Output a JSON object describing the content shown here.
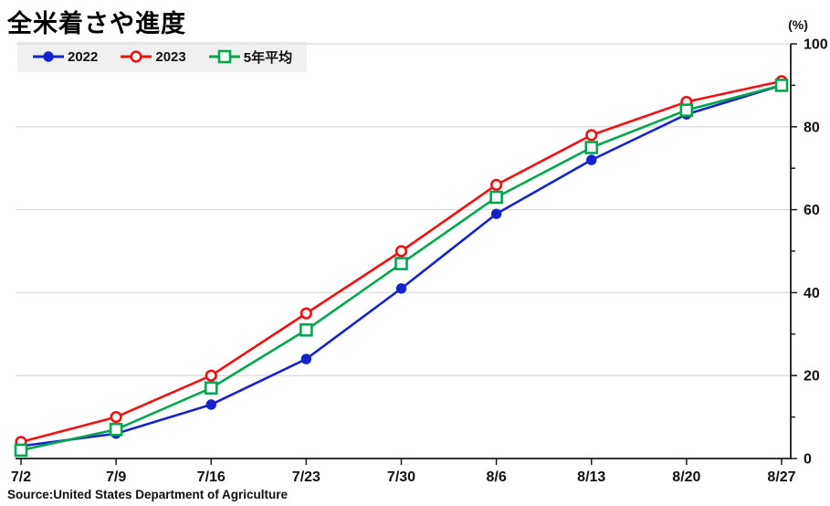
{
  "title": "全米着さや進度",
  "y_unit": "(%)",
  "source": "Source:United States Department of Agriculture",
  "colors": {
    "series_2022": "#1722cc",
    "series_2023": "#ee1111",
    "series_avg5": "#00a54f",
    "grid": "#dcdcdc",
    "axis": "#1a1a1a",
    "text": "#111111",
    "legend_bg": "#f0f0f0",
    "marker_fill_open": "#ffffff"
  },
  "chart_data": {
    "type": "line",
    "categories": [
      "7/2",
      "7/9",
      "7/16",
      "7/23",
      "7/30",
      "8/6",
      "8/13",
      "8/20",
      "8/27"
    ],
    "series": [
      {
        "name": "2022",
        "color_key": "series_2022",
        "marker": "filled-circle",
        "values": [
          3,
          6,
          13,
          24,
          41,
          59,
          72,
          83,
          90
        ]
      },
      {
        "name": "2023",
        "color_key": "series_2023",
        "marker": "open-circle",
        "values": [
          4,
          10,
          20,
          35,
          50,
          66,
          78,
          86,
          91
        ]
      },
      {
        "name": "5年平均",
        "color_key": "series_avg5",
        "marker": "open-square",
        "values": [
          2,
          7,
          17,
          31,
          47,
          63,
          75,
          84,
          90
        ]
      }
    ],
    "title": "全米着さや進度",
    "xlabel": "",
    "ylabel": "(%)",
    "ylim": [
      0,
      100
    ],
    "y_major_ticks": [
      0,
      20,
      40,
      60,
      80,
      100
    ],
    "y_minor_ticks": [
      10,
      30,
      50,
      70,
      90
    ],
    "grid": "horizontal-major",
    "axis_side": "right",
    "legend_position": "top-left"
  }
}
